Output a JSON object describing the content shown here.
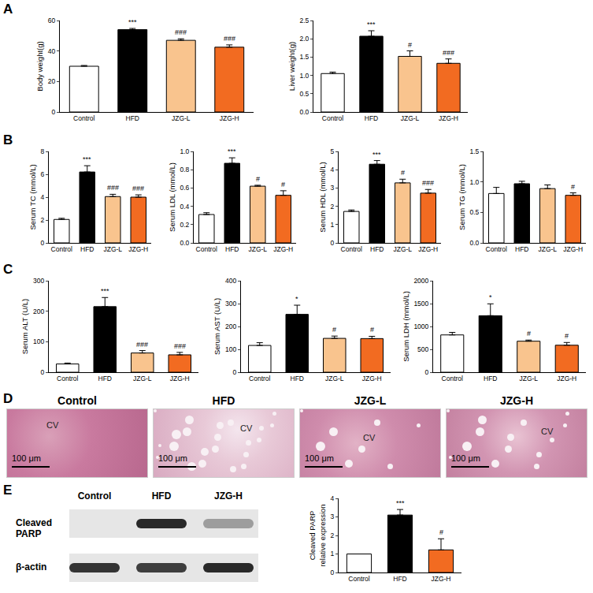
{
  "chart_data": [
    {
      "type": "bar",
      "y_label": "Body weight(g)",
      "categories": [
        "Control",
        "HFD",
        "JZG-L",
        "JZG-H"
      ],
      "values": [
        30,
        54,
        47,
        42.5
      ],
      "errors": [
        0.5,
        0.8,
        1,
        1.5
      ],
      "significance": [
        null,
        "***",
        "###",
        "###"
      ],
      "colors": [
        "#ffffff",
        "#000000",
        "#f9c48e",
        "#f26b21"
      ],
      "ylim": [
        0,
        60
      ],
      "yticks": [
        0,
        20,
        40,
        60
      ],
      "grid": false
    },
    {
      "type": "bar",
      "y_label": "Liver weight(g)",
      "categories": [
        "Control",
        "HFD",
        "JZG-L",
        "JZG-H"
      ],
      "values": [
        1.05,
        2.07,
        1.52,
        1.33
      ],
      "errors": [
        0.04,
        0.15,
        0.15,
        0.12
      ],
      "significance": [
        null,
        "***",
        "#",
        "###"
      ],
      "colors": [
        "#ffffff",
        "#000000",
        "#f9c48e",
        "#f26b21"
      ],
      "ylim": [
        0,
        2.5
      ],
      "yticks": [
        {
          "value": 0,
          "label": "0.0"
        },
        0.5,
        {
          "value": 1,
          "label": "1.0"
        },
        1.5,
        {
          "value": 2,
          "label": "2.0"
        },
        2.5
      ],
      "grid": false
    },
    {
      "type": "bar",
      "y_label": "Serum TC (mmol/L)",
      "categories": [
        "Control",
        "HFD",
        "JZG-L",
        "JZG-H"
      ],
      "values": [
        2.05,
        6.2,
        4.05,
        4.0
      ],
      "errors": [
        0.1,
        0.55,
        0.2,
        0.2
      ],
      "significance": [
        null,
        "***",
        "###",
        "###"
      ],
      "colors": [
        "#ffffff",
        "#000000",
        "#f9c48e",
        "#f26b21"
      ],
      "ylim": [
        0,
        8
      ],
      "yticks": [
        0,
        2,
        4,
        6,
        8
      ],
      "grid": false
    },
    {
      "type": "bar",
      "y_label": "Serum LDL (mmol/L)",
      "categories": [
        "Control",
        "HFD",
        "JZG-L",
        "JZG-H"
      ],
      "values": [
        0.31,
        0.87,
        0.62,
        0.52
      ],
      "errors": [
        0.02,
        0.06,
        0.01,
        0.05
      ],
      "significance": [
        null,
        "***",
        "#",
        "#"
      ],
      "colors": [
        "#ffffff",
        "#000000",
        "#f9c48e",
        "#f26b21"
      ],
      "ylim": [
        0,
        1
      ],
      "yticks": [
        {
          "value": 0,
          "label": "0.0"
        },
        0.2,
        0.4,
        0.6,
        0.8,
        {
          "value": 1,
          "label": "1.0"
        }
      ],
      "grid": false
    },
    {
      "type": "bar",
      "y_label": "Serum HDL (mmol/L)",
      "categories": [
        "Control",
        "HFD",
        "JZG-L",
        "JZG-H"
      ],
      "values": [
        1.72,
        4.3,
        3.28,
        2.72
      ],
      "errors": [
        0.08,
        0.2,
        0.2,
        0.2
      ],
      "significance": [
        null,
        "***",
        "#",
        "###"
      ],
      "colors": [
        "#ffffff",
        "#000000",
        "#f9c48e",
        "#f26b21"
      ],
      "ylim": [
        0,
        5
      ],
      "yticks": [
        0,
        1,
        2,
        3,
        4,
        5
      ],
      "grid": false
    },
    {
      "type": "bar",
      "y_label": "Serum TG (mmol/L)",
      "categories": [
        "Control",
        "HFD",
        "JZG-L",
        "JZG-H"
      ],
      "values": [
        0.81,
        0.97,
        0.89,
        0.78
      ],
      "errors": [
        0.1,
        0.04,
        0.06,
        0.04
      ],
      "significance": [
        null,
        null,
        null,
        "#"
      ],
      "colors": [
        "#ffffff",
        "#000000",
        "#f9c48e",
        "#f26b21"
      ],
      "ylim": [
        0,
        1.5
      ],
      "yticks": [
        {
          "value": 0,
          "label": "0.0"
        },
        0.5,
        {
          "value": 1,
          "label": "1.0"
        },
        1.5
      ],
      "grid": false
    },
    {
      "type": "bar",
      "y_label": "Serum ALT (U/L)",
      "categories": [
        "Control",
        "HFD",
        "JZG-L",
        "JZG-H"
      ],
      "values": [
        27,
        215,
        63,
        57
      ],
      "errors": [
        3,
        30,
        8,
        8
      ],
      "significance": [
        null,
        "***",
        "###",
        "###"
      ],
      "colors": [
        "#ffffff",
        "#000000",
        "#f9c48e",
        "#f26b21"
      ],
      "ylim": [
        0,
        300
      ],
      "yticks": [
        0,
        100,
        200,
        300
      ],
      "grid": false
    },
    {
      "type": "bar",
      "y_label": "Serum AST (U/L)",
      "categories": [
        "Control",
        "HFD",
        "JZG-L",
        "JZG-H"
      ],
      "values": [
        117,
        253,
        148,
        147
      ],
      "errors": [
        12,
        40,
        10,
        10
      ],
      "significance": [
        null,
        "*",
        "#",
        "#"
      ],
      "colors": [
        "#ffffff",
        "#000000",
        "#f9c48e",
        "#f26b21"
      ],
      "ylim": [
        0,
        400
      ],
      "yticks": [
        0,
        100,
        200,
        300,
        400
      ],
      "grid": false
    },
    {
      "type": "bar",
      "y_label": "Serum LDH (mmol/L)",
      "categories": [
        "Control",
        "HFD",
        "JZG-L",
        "JZG-H"
      ],
      "values": [
        815,
        1235,
        678,
        590
      ],
      "errors": [
        55,
        260,
        25,
        60
      ],
      "significance": [
        null,
        "*",
        "#",
        "#"
      ],
      "colors": [
        "#ffffff",
        "#000000",
        "#f9c48e",
        "#f26b21"
      ],
      "ylim": [
        0,
        2000
      ],
      "yticks": [
        0,
        500,
        1000,
        1500,
        2000
      ],
      "grid": false
    },
    {
      "type": "bar",
      "y_label": "Cleaved PARP relative expression",
      "categories": [
        "Control",
        "HFD",
        "JZG-H"
      ],
      "values": [
        1,
        3.1,
        1.22
      ],
      "errors": [
        null,
        0.3,
        0.6
      ],
      "significance": [
        null,
        "***",
        "#"
      ],
      "colors": [
        "#ffffff",
        "#000000",
        "#f26b21"
      ],
      "ylim": [
        0,
        4
      ],
      "yticks": [
        0,
        1,
        2,
        3,
        4
      ],
      "grid": false
    }
  ],
  "panel_labels": [
    "A",
    "B",
    "C",
    "D",
    "E"
  ],
  "histology": {
    "panels": [
      "Control",
      "HFD",
      "JZG-L",
      "JZG-H"
    ],
    "marker_label": "CV",
    "scale_bar": "100 μm"
  },
  "blot": {
    "lanes": [
      "Control",
      "HFD",
      "JZG-H"
    ],
    "rows": [
      "Cleaved PARP",
      "β-actin"
    ]
  }
}
